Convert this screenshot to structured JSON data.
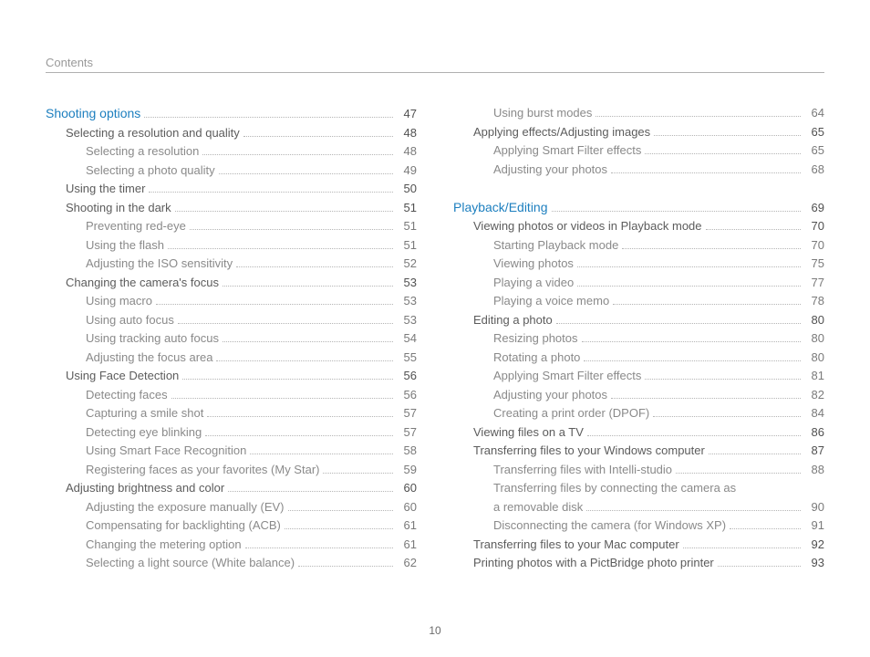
{
  "header": "Contents",
  "page_number": "10",
  "left_column": [
    {
      "level": 0,
      "title": "Shooting options",
      "page": "47",
      "link": true
    },
    {
      "level": 1,
      "title": "Selecting a resolution and quality",
      "page": "48"
    },
    {
      "level": 2,
      "title": "Selecting a resolution",
      "page": "48"
    },
    {
      "level": 2,
      "title": "Selecting a photo quality",
      "page": "49"
    },
    {
      "level": 1,
      "title": "Using the timer",
      "page": "50"
    },
    {
      "level": 1,
      "title": "Shooting in the dark",
      "page": "51"
    },
    {
      "level": 2,
      "title": "Preventing red-eye",
      "page": "51"
    },
    {
      "level": 2,
      "title": "Using the flash",
      "page": "51"
    },
    {
      "level": 2,
      "title": "Adjusting the ISO sensitivity",
      "page": "52"
    },
    {
      "level": 1,
      "title": "Changing the camera's focus",
      "page": "53"
    },
    {
      "level": 2,
      "title": "Using macro",
      "page": "53"
    },
    {
      "level": 2,
      "title": "Using auto focus",
      "page": "53"
    },
    {
      "level": 2,
      "title": "Using tracking auto focus",
      "page": "54"
    },
    {
      "level": 2,
      "title": "Adjusting the focus area",
      "page": "55"
    },
    {
      "level": 1,
      "title": "Using Face Detection",
      "page": "56"
    },
    {
      "level": 2,
      "title": "Detecting faces",
      "page": "56"
    },
    {
      "level": 2,
      "title": "Capturing a smile shot",
      "page": "57"
    },
    {
      "level": 2,
      "title": "Detecting eye blinking",
      "page": "57"
    },
    {
      "level": 2,
      "title": "Using Smart Face Recognition",
      "page": "58"
    },
    {
      "level": 2,
      "title": "Registering faces as your favorites (My Star)",
      "page": "59"
    },
    {
      "level": 1,
      "title": "Adjusting brightness and color",
      "page": "60"
    },
    {
      "level": 2,
      "title": "Adjusting the exposure manually (EV)",
      "page": "60"
    },
    {
      "level": 2,
      "title": "Compensating for backlighting (ACB)",
      "page": "61"
    },
    {
      "level": 2,
      "title": "Changing the metering option",
      "page": "61"
    },
    {
      "level": 2,
      "title": "Selecting a light source (White balance)",
      "page": "62"
    }
  ],
  "right_column": [
    {
      "level": 2,
      "title": "Using burst modes",
      "page": "64"
    },
    {
      "level": 1,
      "title": "Applying effects/Adjusting images",
      "page": "65"
    },
    {
      "level": 2,
      "title": "Applying Smart Filter effects",
      "page": "65"
    },
    {
      "level": 2,
      "title": "Adjusting your photos",
      "page": "68"
    },
    {
      "spacer": true
    },
    {
      "level": 0,
      "title": "Playback/Editing",
      "page": "69",
      "link": true
    },
    {
      "level": 1,
      "title": "Viewing photos or videos in Playback mode",
      "page": "70"
    },
    {
      "level": 2,
      "title": "Starting Playback mode",
      "page": "70"
    },
    {
      "level": 2,
      "title": "Viewing photos",
      "page": "75"
    },
    {
      "level": 2,
      "title": "Playing a video",
      "page": "77"
    },
    {
      "level": 2,
      "title": "Playing a voice memo",
      "page": "78"
    },
    {
      "level": 1,
      "title": "Editing a photo",
      "page": "80"
    },
    {
      "level": 2,
      "title": "Resizing photos",
      "page": "80"
    },
    {
      "level": 2,
      "title": "Rotating a photo",
      "page": "80"
    },
    {
      "level": 2,
      "title": "Applying Smart Filter effects",
      "page": "81"
    },
    {
      "level": 2,
      "title": "Adjusting your photos",
      "page": "82"
    },
    {
      "level": 2,
      "title": "Creating a print order (DPOF)",
      "page": "84"
    },
    {
      "level": 1,
      "title": "Viewing files on a TV",
      "page": "86"
    },
    {
      "level": 1,
      "title": "Transferring files to your Windows computer",
      "page": "87"
    },
    {
      "level": 2,
      "title": "Transferring files with Intelli-studio",
      "page": "88"
    },
    {
      "level": 2,
      "title": "Transferring files by connecting the camera as",
      "nopage": true
    },
    {
      "level": 2,
      "title": "a removable disk",
      "page": "90"
    },
    {
      "level": 2,
      "title": "Disconnecting the camera (for Windows XP)",
      "page": "91"
    },
    {
      "level": 1,
      "title": "Transferring files to your Mac computer",
      "page": "92"
    },
    {
      "level": 1,
      "title": "Printing photos with a PictBridge photo printer",
      "page": "93"
    }
  ]
}
